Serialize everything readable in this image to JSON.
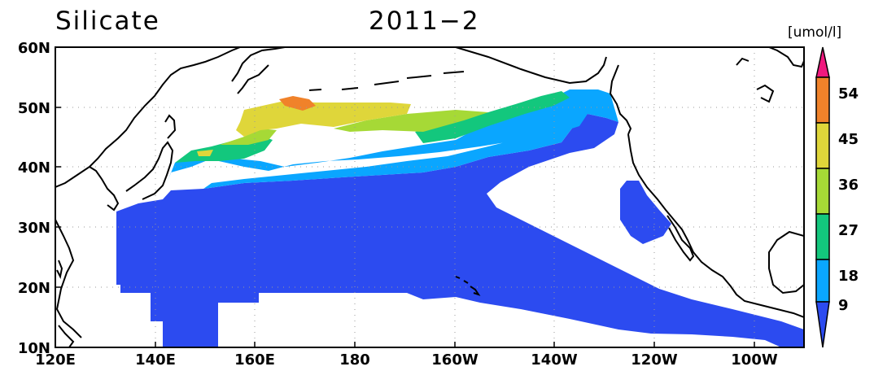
{
  "header": {
    "variable": "Silicate",
    "date": "2011−2"
  },
  "colorbar": {
    "unit": "[umol/l]",
    "labels": [
      "9",
      "18",
      "27",
      "36",
      "45",
      "54"
    ],
    "colors": [
      "#2c4bf0",
      "#0aa6ff",
      "#13c77d",
      "#a6d936",
      "#dfd63a",
      "#f0822a",
      "#f0197e"
    ]
  },
  "axes": {
    "lon_labels": [
      "120E",
      "140E",
      "160E",
      "180",
      "160W",
      "140W",
      "120W",
      "100W"
    ],
    "lat_labels": [
      "10N",
      "20N",
      "30N",
      "40N",
      "50N",
      "60N"
    ],
    "lon_range": [
      120,
      270
    ],
    "lat_range": [
      10,
      60
    ],
    "grid": true
  },
  "map": {
    "region": "North Pacific",
    "field_colors": {
      "land_outline": "#000000",
      "ocean_nodata": "#ffffff"
    }
  }
}
